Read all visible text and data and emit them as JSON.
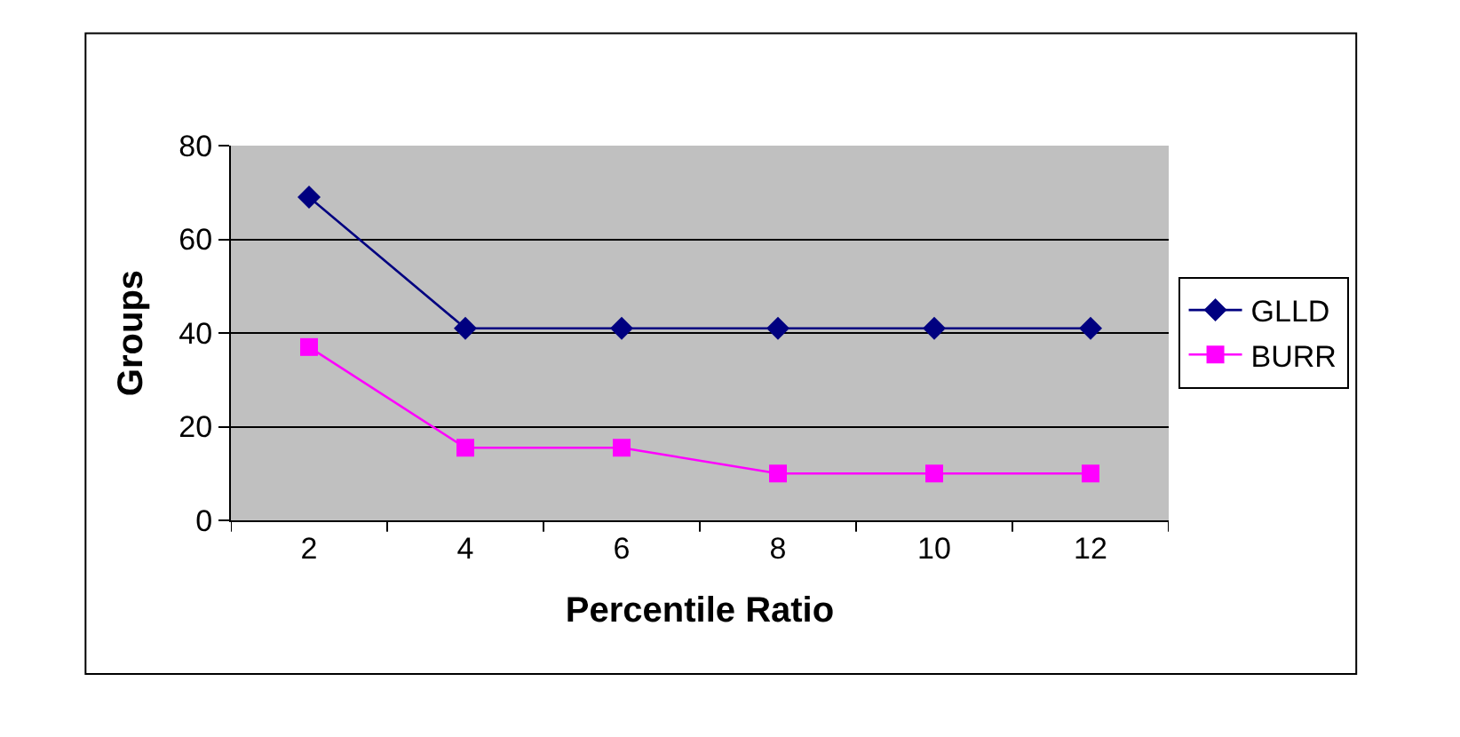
{
  "chart_data": {
    "type": "line",
    "xlabel": "Percentile Ratio",
    "ylabel": "Groups",
    "categories": [
      "2",
      "4",
      "6",
      "8",
      "10",
      "12"
    ],
    "ylim": [
      0,
      80
    ],
    "yticks": [
      0,
      20,
      40,
      60,
      80
    ],
    "grid": "y",
    "legend": "right",
    "line_style": "solid",
    "series": [
      {
        "name": "GLLD",
        "color": "#000080",
        "marker": "diamond",
        "values": [
          69,
          41,
          41,
          41,
          41,
          41
        ]
      },
      {
        "name": "BURR",
        "color": "#ff00ff",
        "marker": "square",
        "values": [
          37,
          15.5,
          15.5,
          10,
          10,
          10
        ]
      }
    ]
  }
}
